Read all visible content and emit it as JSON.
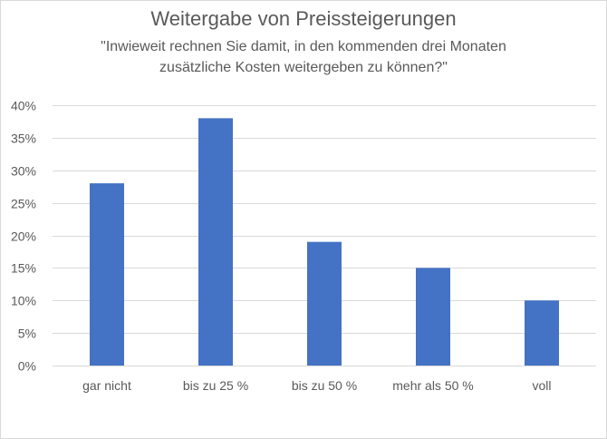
{
  "chart_data": {
    "type": "bar",
    "title": "Weitergabe von Preissteigerungen",
    "subtitle_lines": [
      "\"Inwieweit rechnen Sie damit, in den kommenden drei Monaten",
      "zusätzliche Kosten weitergeben zu können?\""
    ],
    "categories": [
      "gar nicht",
      "bis zu 25 %",
      "bis zu 50 %",
      "mehr als 50 %",
      "voll"
    ],
    "values": [
      28,
      38,
      19,
      15,
      10
    ],
    "ylim": [
      0,
      40
    ],
    "yticks": [
      0,
      5,
      10,
      15,
      20,
      25,
      30,
      35,
      40
    ],
    "ytick_labels": [
      "0%",
      "5%",
      "10%",
      "15%",
      "20%",
      "25%",
      "30%",
      "35%",
      "40%"
    ],
    "xlabel": "",
    "ylabel": "",
    "grid": true,
    "legend": "none",
    "bar_color": "#4472c4",
    "grid_color": "#d9d9d9"
  }
}
